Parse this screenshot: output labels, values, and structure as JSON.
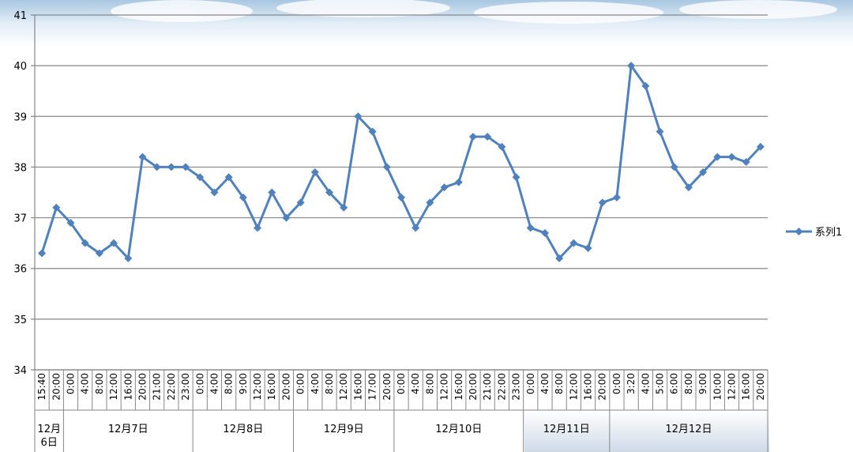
{
  "chart_data": {
    "type": "line",
    "title": "",
    "xlabel": "",
    "ylabel": "",
    "ylim": [
      34,
      41
    ],
    "yticks": [
      34,
      35,
      36,
      37,
      38,
      39,
      40,
      41
    ],
    "grid": "horizontal",
    "legend_position": "right",
    "colors": {
      "series": "#4f81bd",
      "grid": "#868686",
      "axis": "#868686"
    },
    "x": [
      "15:40",
      "20:00",
      "0:00",
      "4:00",
      "8:00",
      "12:00",
      "16:00",
      "20:00",
      "21:00",
      "22:00",
      "23:00",
      "0:00",
      "4:00",
      "8:00",
      "9:00",
      "12:00",
      "16:00",
      "20:00",
      "0:00",
      "4:00",
      "8:00",
      "12:00",
      "16:00",
      "17:00",
      "20:00",
      "0:00",
      "4:00",
      "8:00",
      "12:00",
      "16:00",
      "20:00",
      "21:00",
      "22:00",
      "23:00",
      "0:00",
      "4:00",
      "8:00",
      "12:00",
      "16:00",
      "20:00",
      "0:00",
      "3:20",
      "4:00",
      "5:00",
      "6:00",
      "8:00",
      "9:00",
      "10:00",
      "12:00",
      "16:00",
      "20:00"
    ],
    "groups": [
      {
        "label": "12月6日",
        "lines": [
          "12月",
          "6日"
        ],
        "start": 0,
        "count": 2
      },
      {
        "label": "12月7日",
        "lines": [
          "12月7日"
        ],
        "start": 2,
        "count": 9
      },
      {
        "label": "12月8日",
        "lines": [
          "12月8日"
        ],
        "start": 11,
        "count": 7
      },
      {
        "label": "12月9日",
        "lines": [
          "12月9日"
        ],
        "start": 18,
        "count": 7
      },
      {
        "label": "12月10日",
        "lines": [
          "12月10日"
        ],
        "start": 25,
        "count": 9
      },
      {
        "label": "12月11日",
        "lines": [
          "12月11日"
        ],
        "start": 34,
        "count": 6
      },
      {
        "label": "12月12日",
        "lines": [
          "12月12日"
        ],
        "start": 40,
        "count": 11
      }
    ],
    "series": [
      {
        "name": "系列1",
        "values": [
          36.3,
          37.2,
          36.9,
          36.5,
          36.3,
          36.5,
          36.2,
          38.2,
          38.0,
          38.0,
          38.0,
          37.8,
          37.5,
          37.8,
          37.4,
          36.8,
          37.5,
          37.0,
          37.3,
          37.9,
          37.5,
          37.2,
          39.0,
          38.7,
          38.0,
          37.4,
          36.8,
          37.3,
          37.6,
          37.7,
          38.6,
          38.6,
          38.4,
          37.8,
          36.8,
          36.7,
          36.2,
          36.5,
          36.4,
          37.3,
          37.4,
          40.0,
          39.6,
          38.7,
          38.0,
          37.6,
          37.9,
          38.2,
          38.2,
          38.1,
          38.4
        ]
      }
    ]
  }
}
